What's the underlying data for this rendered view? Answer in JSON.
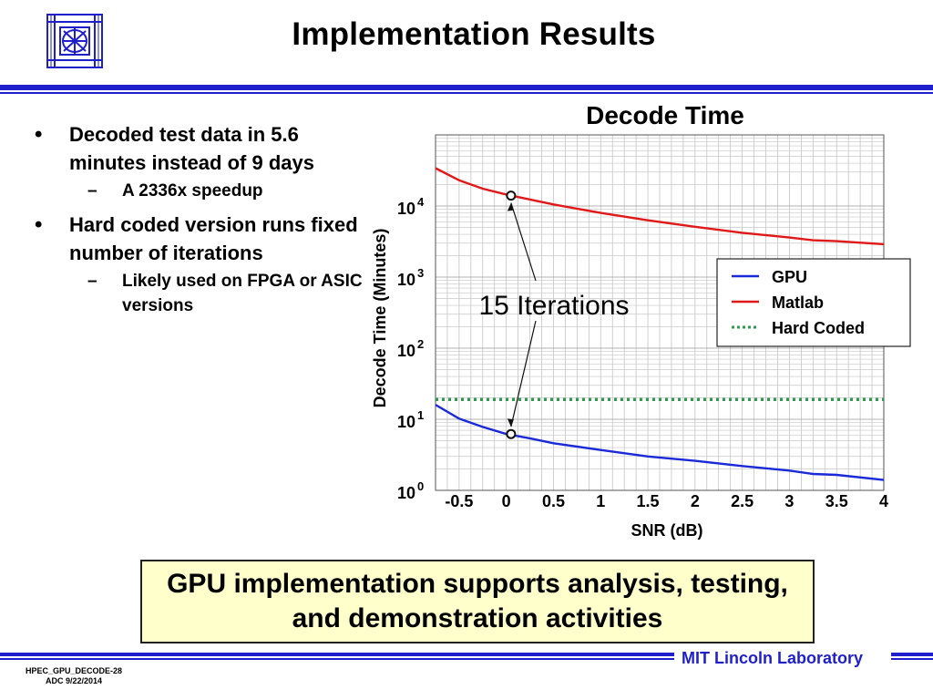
{
  "slide": {
    "title": "Implementation Results",
    "bullets": [
      {
        "text": "Decoded test data in 5.6 minutes instead of 9 days",
        "sub": "A 2336x speedup"
      },
      {
        "text": "Hard coded version runs fixed number of iterations",
        "sub": "Likely used on FPGA or ASIC versions"
      }
    ],
    "callout": "GPU implementation supports analysis, testing, and demonstration activities",
    "footer_lab": "MIT Lincoln Laboratory",
    "footer_id_line1": "HPEC_GPU_DECODE-28",
    "footer_id_line2": "ADC 9/22/2014"
  },
  "colors": {
    "accent": "#1f1fcc",
    "callout_bg": "#ffffcc"
  },
  "chart_data": {
    "type": "line",
    "title": "Decode Time",
    "xlabel": "SNR (dB)",
    "ylabel": "Decode Time (Minutes)",
    "xlim": [
      -0.75,
      4
    ],
    "ylim": [
      1,
      100000
    ],
    "yscale": "log",
    "grid": true,
    "legend_position": "right",
    "x_ticks": [
      "-0.5",
      "0",
      "0.5",
      "1",
      "1.5",
      "2",
      "2.5",
      "3",
      "3.5",
      "4"
    ],
    "x_tick_values": [
      -0.5,
      0,
      0.5,
      1,
      1.5,
      2,
      2.5,
      3,
      3.5,
      4
    ],
    "y_ticks": [
      {
        "base": "10",
        "exp": "0"
      },
      {
        "base": "10",
        "exp": "1"
      },
      {
        "base": "10",
        "exp": "2"
      },
      {
        "base": "10",
        "exp": "3"
      },
      {
        "base": "10",
        "exp": "4"
      }
    ],
    "y_tick_values": [
      1,
      10,
      100,
      1000,
      10000
    ],
    "series": [
      {
        "name": "GPU",
        "color": "#1a2ad8",
        "style": "solid",
        "x": [
          -0.75,
          -0.5,
          -0.25,
          0,
          0.25,
          0.5,
          1,
          1.5,
          2,
          2.5,
          3,
          3.25,
          3.5,
          4
        ],
        "y": [
          16,
          10.2,
          7.8,
          6.2,
          5.4,
          4.6,
          3.7,
          3.0,
          2.6,
          2.2,
          1.9,
          1.7,
          1.65,
          1.4
        ]
      },
      {
        "name": "Matlab",
        "color": "#e01818",
        "style": "solid",
        "x": [
          -0.75,
          -0.5,
          -0.25,
          0,
          0.5,
          1,
          1.5,
          2,
          2.5,
          3,
          3.25,
          3.5,
          4
        ],
        "y": [
          34000,
          23000,
          17500,
          14500,
          10500,
          8000,
          6300,
          5100,
          4200,
          3600,
          3300,
          3200,
          2900
        ]
      },
      {
        "name": "Hard Coded",
        "color": "#2e9a4e",
        "style": "dotted",
        "x": [
          -0.75,
          4
        ],
        "y": [
          19,
          19
        ]
      }
    ],
    "annotations": [
      {
        "text": "15 Iterations",
        "points": [
          {
            "x": 0.05,
            "y": 14000
          },
          {
            "x": 0.05,
            "y": 6.2
          }
        ]
      }
    ]
  }
}
